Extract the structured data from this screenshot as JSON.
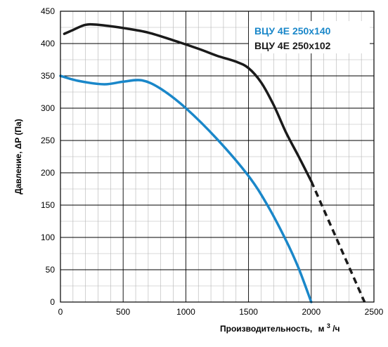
{
  "chart_data": {
    "type": "line",
    "xlabel": "Производительность,",
    "xlabel_unit_base": "м",
    "xlabel_unit_sup": "3",
    "xlabel_unit_tail": "/ч",
    "ylabel": "Давление, ΔP (Па)",
    "xlim": [
      0,
      2500
    ],
    "ylim": [
      0,
      450
    ],
    "x_ticks": [
      0,
      500,
      1000,
      1500,
      2000,
      2500
    ],
    "y_ticks": [
      0,
      50,
      100,
      150,
      200,
      250,
      300,
      350,
      400,
      450
    ],
    "x_minor_step": 100,
    "y_minor_step": 25,
    "grid": true,
    "legend_position": "top-right",
    "series": [
      {
        "name": "ВЦУ 4Е 250x140",
        "color": "#1a87c9",
        "points": [
          [
            0,
            350
          ],
          [
            150,
            342
          ],
          [
            350,
            337
          ],
          [
            500,
            341
          ],
          [
            650,
            343
          ],
          [
            800,
            330
          ],
          [
            1000,
            300
          ],
          [
            1250,
            252
          ],
          [
            1500,
            195
          ],
          [
            1650,
            150
          ],
          [
            1800,
            95
          ],
          [
            1900,
            52
          ],
          [
            2000,
            0
          ]
        ]
      },
      {
        "name": "ВЦУ 4Е 250x102",
        "color": "#1a1a1a",
        "points": [
          [
            30,
            415
          ],
          [
            100,
            421
          ],
          [
            200,
            429
          ],
          [
            300,
            429
          ],
          [
            500,
            424
          ],
          [
            700,
            417
          ],
          [
            900,
            405
          ],
          [
            1100,
            392
          ],
          [
            1250,
            381
          ],
          [
            1400,
            372
          ],
          [
            1500,
            362
          ],
          [
            1600,
            340
          ],
          [
            1700,
            305
          ],
          [
            1800,
            262
          ],
          [
            1900,
            225
          ],
          [
            2000,
            187
          ]
        ],
        "extrapolated": [
          [
            2000,
            187
          ],
          [
            2100,
            145
          ],
          [
            2200,
            100
          ],
          [
            2300,
            55
          ],
          [
            2400,
            10
          ],
          [
            2425,
            0
          ]
        ]
      }
    ]
  }
}
